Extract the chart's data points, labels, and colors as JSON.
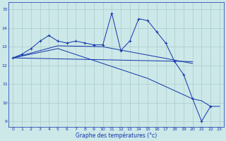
{
  "xlabel": "Graphe des températures (°c)",
  "background_color": "#cce8e8",
  "grid_color": "#aacccc",
  "line_color": "#1133aa",
  "xlim": [
    -0.5,
    23.5
  ],
  "ylim": [
    8.7,
    15.4
  ],
  "yticks": [
    9,
    10,
    11,
    12,
    13,
    14,
    15
  ],
  "xticks": [
    0,
    1,
    2,
    3,
    4,
    5,
    6,
    7,
    8,
    9,
    10,
    11,
    12,
    13,
    14,
    15,
    16,
    17,
    18,
    19,
    20,
    21,
    22,
    23
  ],
  "line1_x": [
    0,
    1,
    2,
    3,
    4,
    5,
    6,
    7,
    8,
    9,
    10,
    11,
    12,
    13,
    14,
    15,
    16,
    17,
    18,
    19,
    20,
    21,
    22
  ],
  "line1_y": [
    12.4,
    12.6,
    12.9,
    13.3,
    13.6,
    13.3,
    13.2,
    13.3,
    13.2,
    13.1,
    13.1,
    14.8,
    12.8,
    13.3,
    14.5,
    14.4,
    13.8,
    13.2,
    12.2,
    11.5,
    10.2,
    9.0,
    9.8
  ],
  "line2_x": [
    0,
    20
  ],
  "line2_y": [
    12.4,
    12.2
  ],
  "line3_x": [
    0,
    5,
    10,
    15,
    20
  ],
  "line3_y": [
    12.4,
    13.05,
    13.0,
    12.55,
    12.1
  ],
  "line4_x": [
    0,
    5,
    10,
    15,
    20,
    21,
    22,
    23
  ],
  "line4_y": [
    12.4,
    12.9,
    12.1,
    11.3,
    10.2,
    10.1,
    9.8,
    9.8
  ]
}
